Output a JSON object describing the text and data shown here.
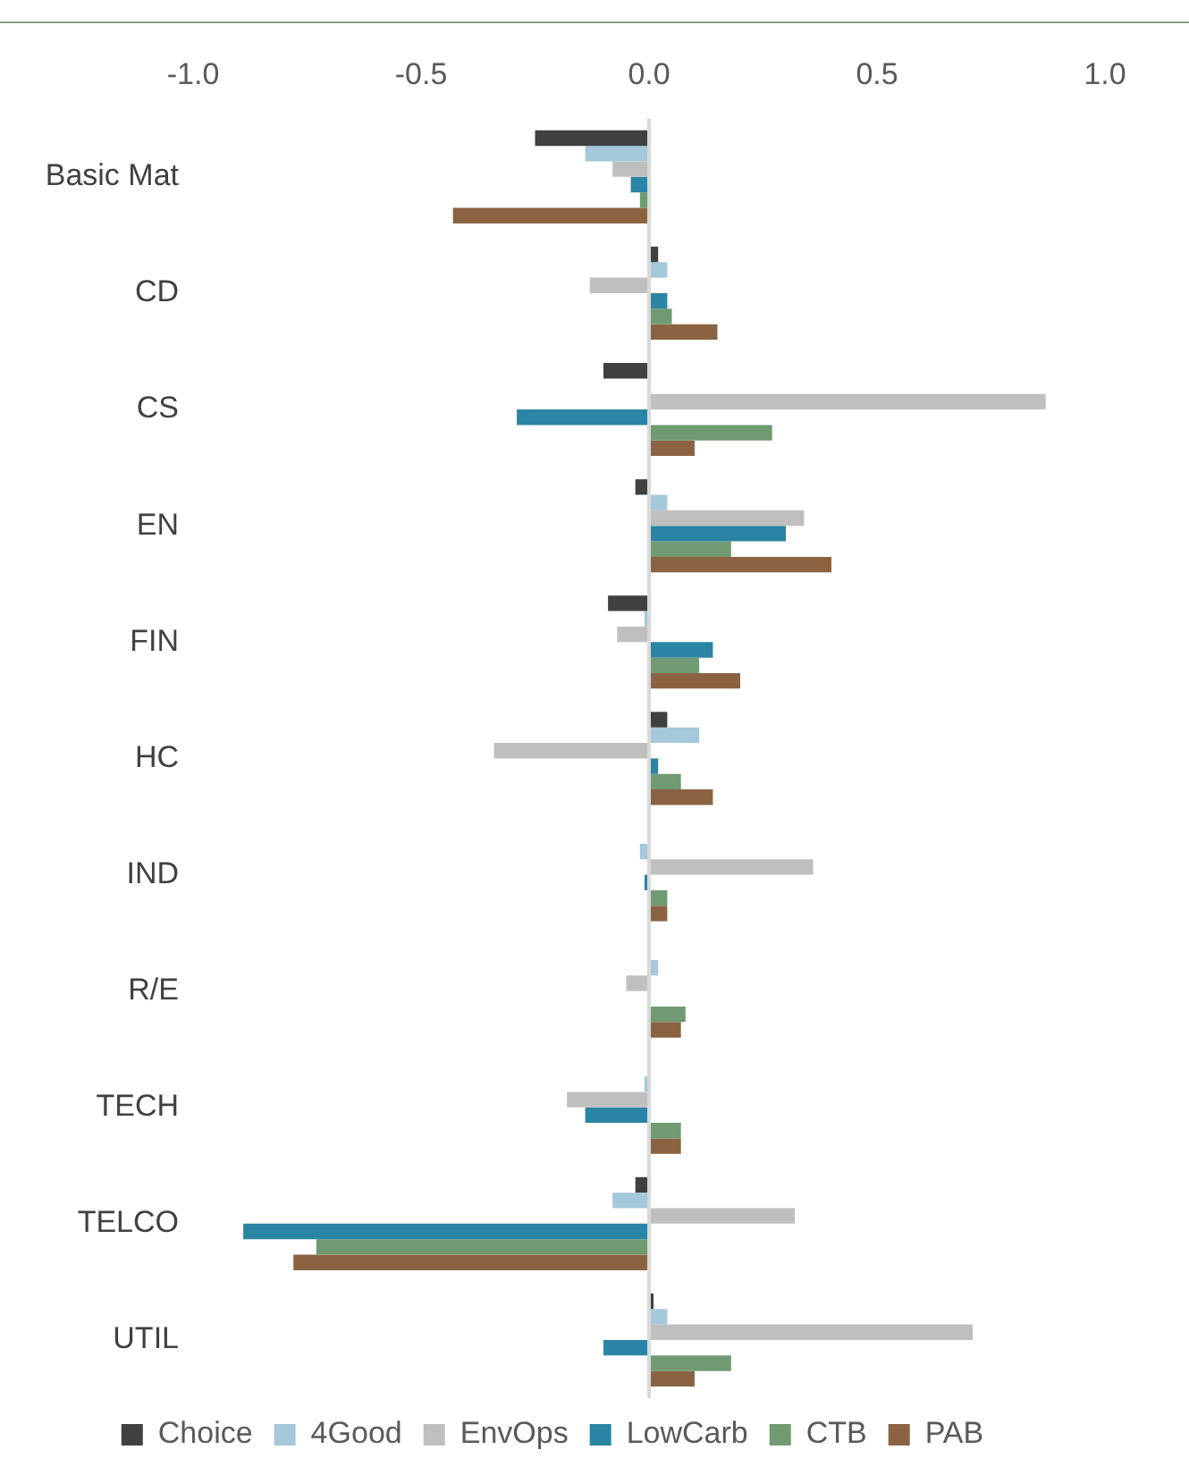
{
  "chart_data": {
    "type": "bar",
    "orientation": "horizontal",
    "categories": [
      "Basic Mat",
      "CD",
      "CS",
      "EN",
      "FIN",
      "HC",
      "IND",
      "R/E",
      "TECH",
      "TELCO",
      "UTIL"
    ],
    "series": [
      {
        "name": "Choice",
        "color": "#404040",
        "values": [
          -0.25,
          0.02,
          -0.1,
          -0.03,
          -0.09,
          0.04,
          0.0,
          0.0,
          0.0,
          -0.03,
          0.01
        ]
      },
      {
        "name": "4Good",
        "color": "#a5c8da",
        "values": [
          -0.14,
          0.04,
          0.0,
          0.04,
          -0.01,
          0.11,
          -0.02,
          0.02,
          -0.01,
          -0.08,
          0.04
        ]
      },
      {
        "name": "EnvOps",
        "color": "#bfbfbf",
        "values": [
          -0.08,
          -0.13,
          0.87,
          0.34,
          -0.07,
          -0.34,
          0.36,
          -0.05,
          -0.18,
          0.32,
          0.71
        ]
      },
      {
        "name": "LowCarb",
        "color": "#2a84a4",
        "values": [
          -0.04,
          0.04,
          -0.29,
          0.3,
          0.14,
          0.02,
          -0.01,
          0.0,
          -0.14,
          -0.89,
          -0.1
        ]
      },
      {
        "name": "CTB",
        "color": "#709a72",
        "values": [
          -0.02,
          0.05,
          0.27,
          0.18,
          0.11,
          0.07,
          0.04,
          0.08,
          0.07,
          -0.73,
          0.18
        ]
      },
      {
        "name": "PAB",
        "color": "#8b6343",
        "values": [
          -0.43,
          0.15,
          0.1,
          0.4,
          0.2,
          0.14,
          0.04,
          0.07,
          0.07,
          -0.78,
          0.1
        ]
      }
    ],
    "xlim": [
      -1.0,
      1.0
    ],
    "xticks": [
      {
        "value": -1,
        "label": "-1.0"
      },
      {
        "value": -0.5,
        "label": "-0.5"
      },
      {
        "value": 0,
        "label": "0.0"
      },
      {
        "value": 0.5,
        "label": "0.5"
      },
      {
        "value": 1,
        "label": "1.0"
      }
    ],
    "ref_lines": [
      {
        "axis": "x",
        "value": 0,
        "color": "#d9d9d9"
      }
    ],
    "grid": false,
    "legend": "bottom"
  }
}
